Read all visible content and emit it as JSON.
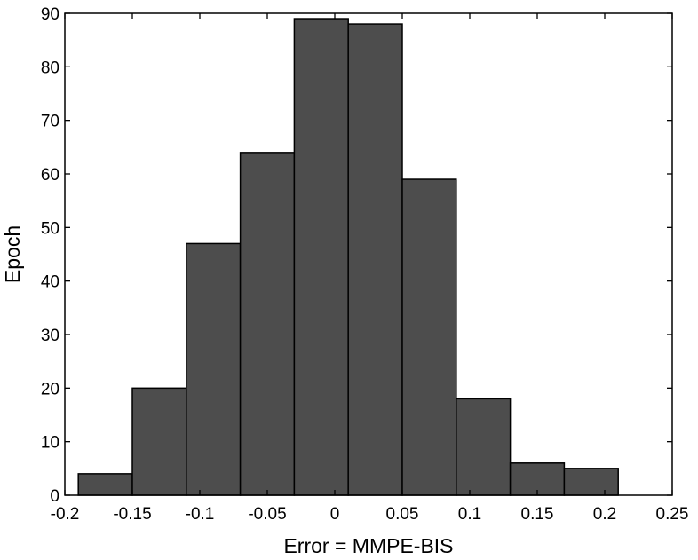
{
  "chart_data": {
    "type": "bar",
    "xlabel": "Error = MMPE-BIS",
    "ylabel": "Epoch",
    "xlim": [
      -0.2,
      0.25
    ],
    "ylim": [
      0,
      90
    ],
    "x_ticks": [
      "-0.2",
      "-0.15",
      "-0.1",
      "-0.05",
      "0",
      "0.05",
      "0.1",
      "0.15",
      "0.2",
      "0.25"
    ],
    "y_ticks": [
      "0",
      "10",
      "20",
      "30",
      "40",
      "50",
      "60",
      "70",
      "80",
      "90"
    ],
    "bin_width": 0.04,
    "bins": [
      {
        "center": -0.17,
        "value": 4
      },
      {
        "center": -0.13,
        "value": 20
      },
      {
        "center": -0.09,
        "value": 47
      },
      {
        "center": -0.05,
        "value": 64
      },
      {
        "center": -0.01,
        "value": 89
      },
      {
        "center": 0.03,
        "value": 88
      },
      {
        "center": 0.07,
        "value": 59
      },
      {
        "center": 0.11,
        "value": 18
      },
      {
        "center": 0.15,
        "value": 6
      },
      {
        "center": 0.19,
        "value": 5
      }
    ],
    "bar_color": "#4d4d4d",
    "grid": false
  }
}
